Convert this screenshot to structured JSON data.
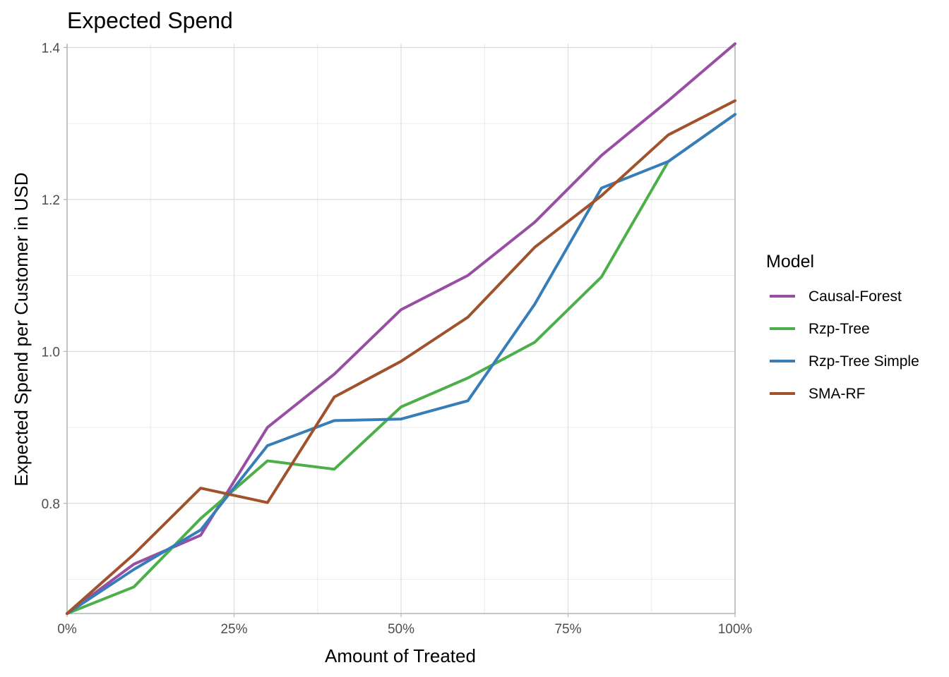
{
  "chart_data": {
    "type": "line",
    "title": "Expected Spend",
    "xlabel": "Amount of Treated",
    "ylabel": "Expected Spend per Customer in USD",
    "xlim": [
      0,
      1
    ],
    "ylim": [
      0.655,
      1.405
    ],
    "x_ticks": [
      0,
      0.25,
      0.5,
      0.75,
      1
    ],
    "x_tick_labels": [
      "0%",
      "25%",
      "50%",
      "75%",
      "100%"
    ],
    "y_ticks": [
      0.8,
      1.0,
      1.2,
      1.4
    ],
    "y_tick_labels": [
      "0.8",
      "1.0",
      "1.2",
      "1.4"
    ],
    "grid": true,
    "legend_title": "Model",
    "legend_position": "right",
    "x": [
      0,
      0.1,
      0.2,
      0.3,
      0.4,
      0.5,
      0.6,
      0.7,
      0.8,
      0.9,
      1.0
    ],
    "series": [
      {
        "name": "Causal-Forest",
        "color": "#984ea3",
        "values": [
          0.655,
          0.72,
          0.758,
          0.9,
          0.97,
          1.055,
          1.1,
          1.17,
          1.258,
          1.33,
          1.405
        ]
      },
      {
        "name": "Rzp-Tree",
        "color": "#4daf4a",
        "values": [
          0.655,
          0.69,
          0.78,
          0.856,
          0.845,
          0.927,
          0.965,
          1.012,
          1.098,
          1.25,
          1.312
        ]
      },
      {
        "name": "Rzp-Tree Simple",
        "color": "#377eb8",
        "values": [
          0.655,
          0.713,
          0.765,
          0.876,
          0.909,
          0.911,
          0.935,
          1.062,
          1.215,
          1.25,
          1.312
        ]
      },
      {
        "name": "SMA-RF",
        "color": "#a0522d",
        "values": [
          0.655,
          0.733,
          0.82,
          0.801,
          0.94,
          0.987,
          1.045,
          1.137,
          1.205,
          1.285,
          1.33
        ]
      }
    ]
  }
}
